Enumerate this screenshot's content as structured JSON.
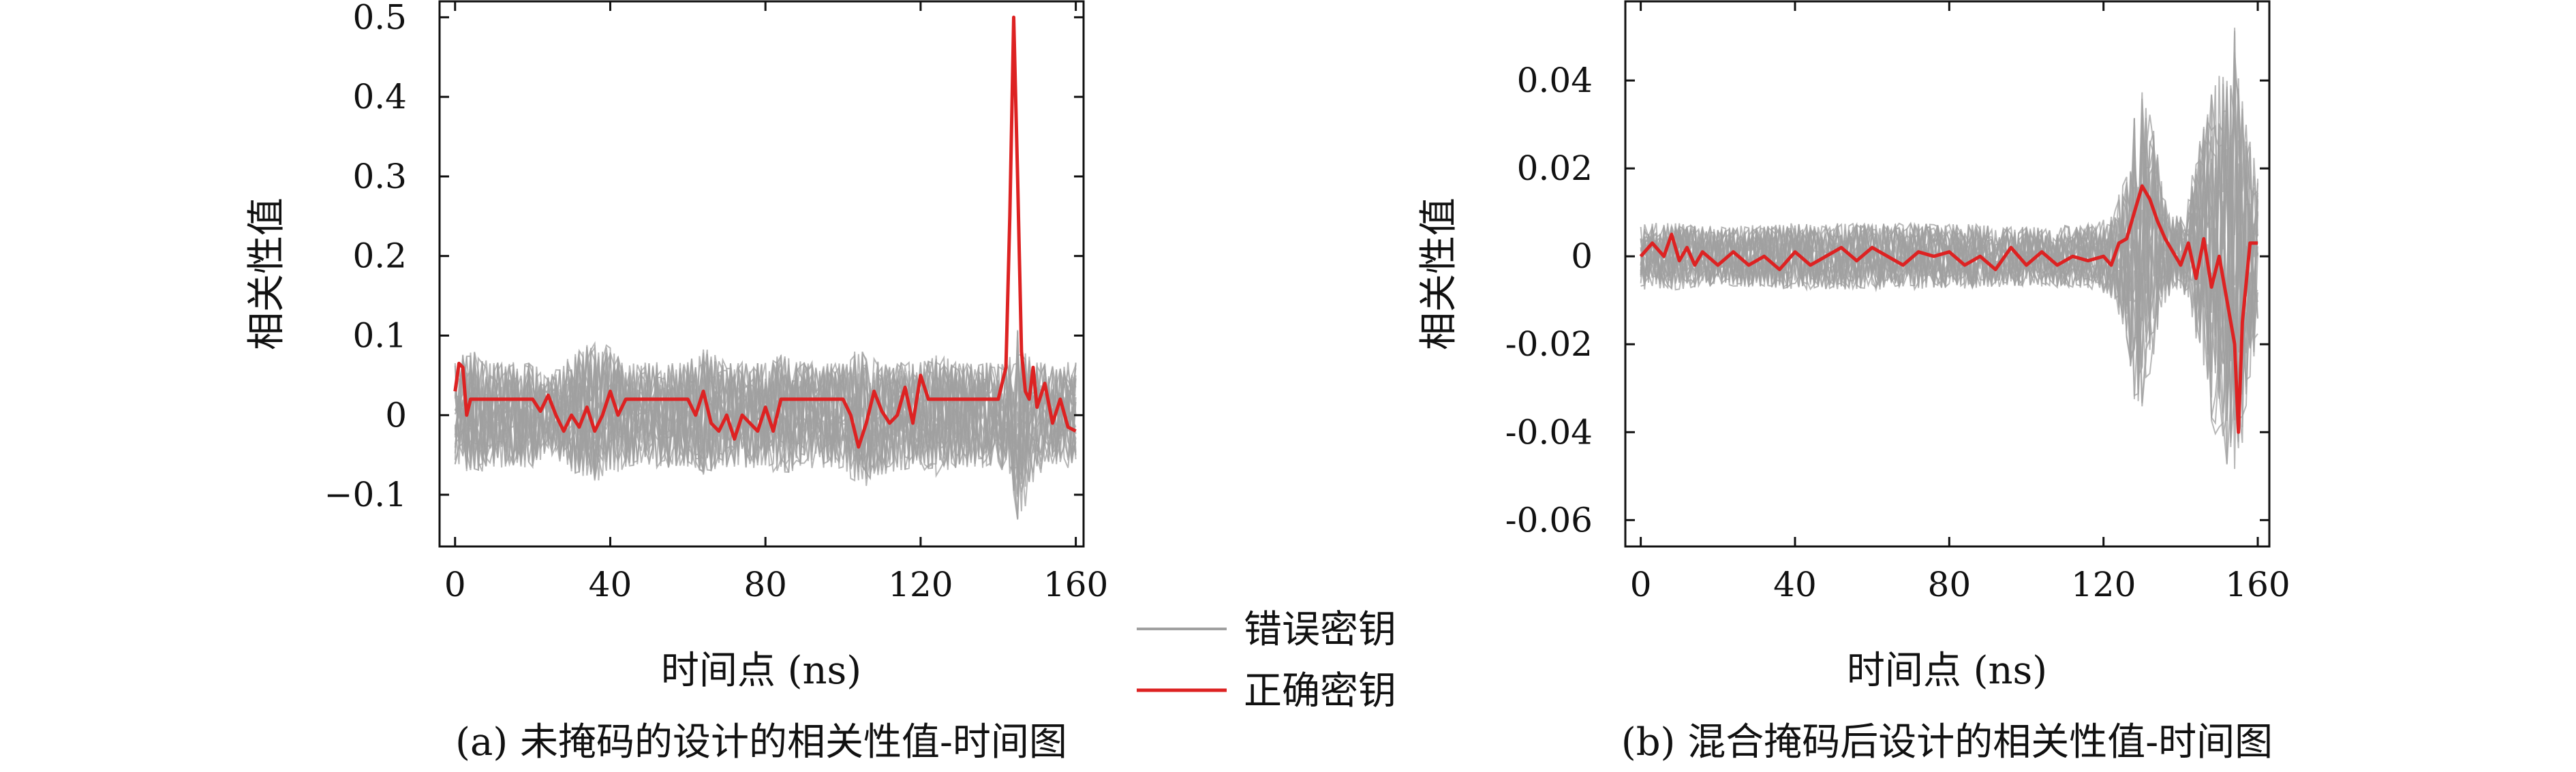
{
  "figure": {
    "legend": [
      {
        "label": "错误密钥",
        "color": "#a0a0a0"
      },
      {
        "label": "正确密钥",
        "color": "#dd2222"
      }
    ]
  },
  "chart_data": [
    {
      "type": "line",
      "caption": "(a) 未掩码的设计的相关性值-时间图",
      "xlabel": "时间点 (ns)",
      "ylabel": "相关性值",
      "xlim": [
        -4,
        162
      ],
      "ylim": [
        -0.165,
        0.52
      ],
      "xticks": [
        0,
        40,
        80,
        120,
        160
      ],
      "yticks": [
        -0.1,
        0,
        0.1,
        0.2,
        0.3,
        0.4,
        0.5
      ],
      "ytick_labels": [
        "−0.1",
        "0",
        "0.1",
        "0.2",
        "0.3",
        "0.4",
        "0.5"
      ],
      "grid": false,
      "wrong_key_band": {
        "color": "#a0a0a0",
        "x": [
          0,
          4,
          10,
          20,
          24,
          28,
          36,
          40,
          44,
          50,
          60,
          64,
          70,
          80,
          84,
          90,
          100,
          104,
          110,
          120,
          124,
          130,
          140,
          143,
          145,
          147,
          150,
          155,
          160
        ],
        "upper": [
          0.07,
          0.09,
          0.07,
          0.07,
          0.05,
          0.08,
          0.1,
          0.09,
          0.07,
          0.07,
          0.07,
          0.09,
          0.07,
          0.07,
          0.08,
          0.07,
          0.07,
          0.09,
          0.07,
          0.07,
          0.08,
          0.07,
          0.07,
          0.08,
          0.12,
          0.1,
          0.07,
          0.07,
          0.07
        ],
        "lower": [
          -0.07,
          -0.08,
          -0.07,
          -0.07,
          -0.05,
          -0.07,
          -0.09,
          -0.08,
          -0.07,
          -0.07,
          -0.07,
          -0.08,
          -0.07,
          -0.07,
          -0.08,
          -0.07,
          -0.07,
          -0.1,
          -0.08,
          -0.07,
          -0.08,
          -0.07,
          -0.07,
          -0.08,
          -0.14,
          -0.12,
          -0.08,
          -0.07,
          -0.07
        ]
      },
      "correct_key": {
        "color": "#dd2222",
        "x": [
          0,
          1,
          2,
          3,
          4,
          5,
          10,
          20,
          22,
          24,
          26,
          28,
          30,
          32,
          34,
          36,
          38,
          40,
          42,
          44,
          50,
          60,
          62,
          64,
          66,
          68,
          70,
          72,
          74,
          76,
          78,
          80,
          82,
          84,
          90,
          100,
          102,
          104,
          106,
          108,
          110,
          112,
          114,
          116,
          118,
          120,
          122,
          124,
          130,
          140,
          142,
          143,
          144,
          145,
          146,
          147,
          148,
          149,
          150,
          152,
          154,
          156,
          158,
          160
        ],
        "y": [
          0.03,
          0.065,
          0.06,
          0.0,
          0.02,
          0.02,
          0.02,
          0.02,
          0.005,
          0.025,
          0.0,
          -0.02,
          0.0,
          -0.015,
          0.01,
          -0.02,
          0.0,
          0.03,
          0.0,
          0.02,
          0.02,
          0.02,
          0.0,
          0.03,
          -0.01,
          -0.02,
          0.0,
          -0.03,
          0.0,
          -0.01,
          -0.02,
          0.01,
          -0.02,
          0.02,
          0.02,
          0.02,
          0.0,
          -0.04,
          -0.01,
          0.03,
          0.005,
          -0.01,
          0.0,
          0.035,
          -0.01,
          0.05,
          0.02,
          0.02,
          0.02,
          0.02,
          0.06,
          0.25,
          0.5,
          0.3,
          0.08,
          0.03,
          0.02,
          0.06,
          0.01,
          0.04,
          -0.01,
          0.02,
          -0.015,
          -0.02
        ]
      }
    },
    {
      "type": "line",
      "caption": "(b) 混合掩码后设计的相关性值-时间图",
      "xlabel": "时间点 (ns)",
      "ylabel": "相关性值",
      "xlim": [
        -4,
        163
      ],
      "ylim": [
        -0.066,
        0.058
      ],
      "xticks": [
        0,
        40,
        80,
        120,
        160
      ],
      "yticks": [
        -0.06,
        -0.04,
        -0.02,
        0,
        0.02,
        0.04
      ],
      "ytick_labels": [
        "-0.06",
        "-0.04",
        "-0.02",
        "0",
        "0.02",
        "0.04"
      ],
      "grid": false,
      "wrong_key_band": {
        "color": "#a0a0a0",
        "x": [
          0,
          10,
          20,
          40,
          60,
          80,
          100,
          118,
          122,
          126,
          128,
          130,
          132,
          134,
          136,
          138,
          140,
          142,
          144,
          146,
          148,
          150,
          152,
          154,
          156,
          158,
          160
        ],
        "upper": [
          0.008,
          0.008,
          0.007,
          0.008,
          0.008,
          0.008,
          0.007,
          0.008,
          0.01,
          0.02,
          0.035,
          0.04,
          0.035,
          0.025,
          0.015,
          0.01,
          0.01,
          0.015,
          0.025,
          0.035,
          0.04,
          0.045,
          0.05,
          0.055,
          0.045,
          0.03,
          0.02
        ],
        "lower": [
          -0.008,
          -0.008,
          -0.007,
          -0.008,
          -0.008,
          -0.008,
          -0.007,
          -0.008,
          -0.01,
          -0.02,
          -0.035,
          -0.037,
          -0.03,
          -0.02,
          -0.012,
          -0.008,
          -0.008,
          -0.012,
          -0.02,
          -0.03,
          -0.04,
          -0.045,
          -0.05,
          -0.06,
          -0.045,
          -0.03,
          -0.02
        ]
      },
      "correct_key": {
        "color": "#dd2222",
        "x": [
          0,
          3,
          6,
          8,
          10,
          12,
          14,
          16,
          20,
          24,
          28,
          32,
          36,
          40,
          44,
          48,
          52,
          56,
          60,
          64,
          68,
          72,
          76,
          80,
          84,
          88,
          92,
          96,
          100,
          104,
          108,
          112,
          116,
          120,
          122,
          124,
          126,
          128,
          130,
          132,
          134,
          136,
          138,
          140,
          142,
          144,
          146,
          148,
          150,
          152,
          154,
          155,
          156,
          158,
          160
        ],
        "y": [
          0.0,
          0.003,
          0.0,
          0.005,
          -0.001,
          0.002,
          -0.002,
          0.001,
          -0.002,
          0.001,
          -0.002,
          0.0,
          -0.003,
          0.001,
          -0.002,
          0.0,
          0.002,
          -0.001,
          0.002,
          0.0,
          -0.002,
          0.001,
          0.0,
          0.001,
          -0.002,
          0.0,
          -0.003,
          0.002,
          -0.002,
          0.001,
          -0.002,
          0.0,
          -0.001,
          0.0,
          -0.002,
          0.003,
          0.004,
          0.01,
          0.016,
          0.013,
          0.008,
          0.004,
          0.001,
          -0.002,
          0.003,
          -0.005,
          0.004,
          -0.007,
          0.0,
          -0.01,
          -0.02,
          -0.04,
          -0.015,
          0.003,
          0.003
        ]
      }
    }
  ]
}
